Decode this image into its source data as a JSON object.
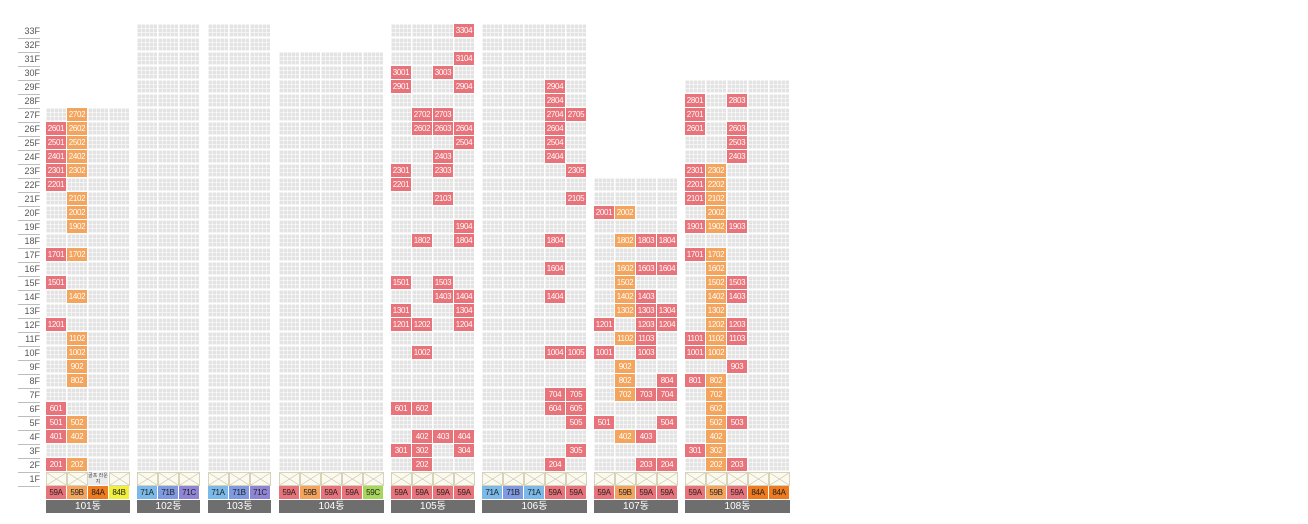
{
  "floors": [
    "33F",
    "32F",
    "31F",
    "30F",
    "29F",
    "28F",
    "27F",
    "26F",
    "25F",
    "24F",
    "23F",
    "22F",
    "21F",
    "20F",
    "19F",
    "18F",
    "17F",
    "16F",
    "15F",
    "14F",
    "13F",
    "12F",
    "11F",
    "10F",
    "9F",
    "8F",
    "7F",
    "6F",
    "5F",
    "4F",
    "3F",
    "2F",
    "1F"
  ],
  "colors": {
    "59A": "#e8737a",
    "59B": "#f3a45d",
    "84A": "#ee7b1f",
    "84B": "#f0ef3c",
    "71A": "#7ab9e8",
    "71B": "#7f9ae0",
    "71C": "#8e86d4",
    "59C": "#a6d65a"
  },
  "buildings": [
    {
      "name": "101동",
      "floors": 27,
      "columns": [
        {
          "type": "59A",
          "units": [
            "2601",
            "2501",
            "2401",
            "2301",
            "2201",
            "1701",
            "1501",
            "1201",
            "601",
            "501",
            "401",
            "201"
          ]
        },
        {
          "type": "59B",
          "units": [
            "2702",
            "2602",
            "2502",
            "2402",
            "2302",
            "2102",
            "2002",
            "1902",
            "1702",
            "1402",
            "1102",
            "1002",
            "902",
            "802",
            "502",
            "402",
            "202"
          ]
        },
        {
          "type": "84A",
          "units": [],
          "facility_1f": "골프 라운지"
        },
        {
          "type": "84B",
          "units": []
        }
      ]
    },
    {
      "name": "102동",
      "floors": 33,
      "columns": [
        {
          "type": "71A",
          "units": []
        },
        {
          "type": "71B",
          "units": []
        },
        {
          "type": "71C",
          "units": []
        }
      ]
    },
    {
      "name": "103동",
      "floors": 33,
      "columns": [
        {
          "type": "71A",
          "units": []
        },
        {
          "type": "71B",
          "units": []
        },
        {
          "type": "71C",
          "units": []
        }
      ]
    },
    {
      "name": "104동",
      "floors": 31,
      "columns": [
        {
          "type": "59A",
          "units": []
        },
        {
          "type": "59B",
          "units": []
        },
        {
          "type": "59A",
          "units": []
        },
        {
          "type": "59A",
          "units": []
        },
        {
          "type": "59C",
          "units": []
        }
      ]
    },
    {
      "name": "105동",
      "floors": 33,
      "columns": [
        {
          "type": "59A",
          "units": [
            "3001",
            "2901",
            "2301",
            "2201",
            "1501",
            "1301",
            "1201",
            "601",
            "301"
          ]
        },
        {
          "type": "59A",
          "units": [
            "2702",
            "2602",
            "1802",
            "1202",
            "1002",
            "602",
            "402",
            "302",
            "202"
          ]
        },
        {
          "type": "59A",
          "units": [
            "3003",
            "2703",
            "2603",
            "2403",
            "2303",
            "2103",
            "1503",
            "1403",
            "403"
          ]
        },
        {
          "type": "59A",
          "units": [
            "3304",
            "3104",
            "2904",
            "2604",
            "2504",
            "1904",
            "1804",
            "1404",
            "1304",
            "1204",
            "404",
            "304"
          ]
        }
      ]
    },
    {
      "name": "106동",
      "floors": 33,
      "columns": [
        {
          "type": "71A",
          "units": []
        },
        {
          "type": "71B",
          "units": []
        },
        {
          "type": "71A",
          "units": []
        },
        {
          "type": "59A",
          "units": [
            "2904",
            "2804",
            "2704",
            "2604",
            "2504",
            "2404",
            "1804",
            "1604",
            "1404",
            "1004",
            "704",
            "604",
            "204"
          ]
        },
        {
          "type": "59A",
          "units": [
            "2705",
            "2305",
            "2105",
            "1005",
            "705",
            "605",
            "505",
            "305"
          ]
        }
      ]
    },
    {
      "name": "107동",
      "floors": 22,
      "columns": [
        {
          "type": "59A",
          "units": [
            "2001",
            "1201",
            "1001",
            "501"
          ]
        },
        {
          "type": "59B",
          "units": [
            "2002",
            "1802",
            "1602",
            "1502",
            "1402",
            "1302",
            "1102",
            "902",
            "802",
            "702",
            "402"
          ]
        },
        {
          "type": "59A",
          "units": [
            "1803",
            "1603",
            "1403",
            "1303",
            "1203",
            "1103",
            "1003",
            "703",
            "403",
            "203"
          ]
        },
        {
          "type": "59A",
          "units": [
            "1804",
            "1604",
            "1304",
            "1204",
            "804",
            "704",
            "504",
            "204"
          ]
        }
      ]
    },
    {
      "name": "108동",
      "floors": 29,
      "columns": [
        {
          "type": "59A",
          "units": [
            "2801",
            "2701",
            "2601",
            "2301",
            "2201",
            "2101",
            "1901",
            "1701",
            "1101",
            "1001",
            "801",
            "301"
          ]
        },
        {
          "type": "59B",
          "units": [
            "2302",
            "2202",
            "2102",
            "2002",
            "1902",
            "1702",
            "1602",
            "1502",
            "1402",
            "1302",
            "1202",
            "1102",
            "1002",
            "802",
            "702",
            "602",
            "502",
            "402",
            "302",
            "202"
          ]
        },
        {
          "type": "59A",
          "units": [
            "2803",
            "2603",
            "2503",
            "2403",
            "1903",
            "1503",
            "1403",
            "1203",
            "1103",
            "903",
            "503",
            "203"
          ]
        },
        {
          "type": "84A",
          "units": []
        },
        {
          "type": "84A",
          "units": []
        }
      ]
    }
  ]
}
